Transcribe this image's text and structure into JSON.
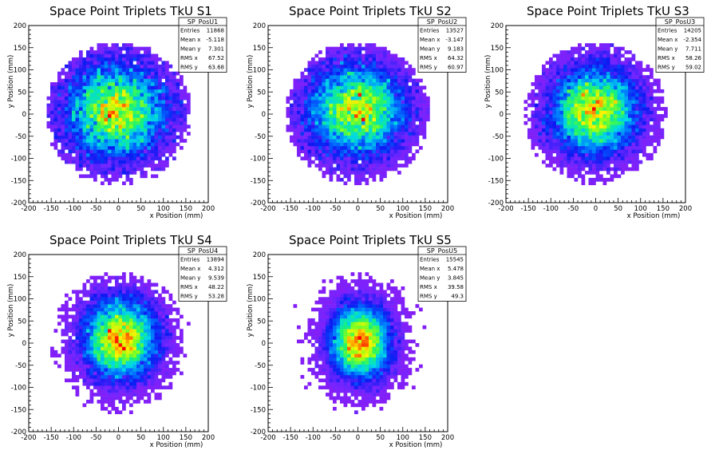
{
  "chart_data": [
    {
      "type": "heatmap",
      "title": "Space Point Triplets TkU S1",
      "xlabel": "x Position (mm)",
      "ylabel": "y Position (mm)",
      "xlim": [
        -200,
        200
      ],
      "ylim": [
        -200,
        200
      ],
      "xticks": [
        "-200",
        "-150",
        "-100",
        "-50",
        "0",
        "50",
        "100",
        "150",
        "200"
      ],
      "yticks": [
        "-200",
        "-150",
        "-100",
        "-50",
        "0",
        "50",
        "100",
        "150",
        "200"
      ],
      "stats": {
        "name": "SP_PosU1",
        "rows": [
          {
            "label": "Entries",
            "value": "11868"
          },
          {
            "label": "Mean x",
            "value": "-5.118"
          },
          {
            "label": "Mean y",
            "value": "7.301"
          },
          {
            "label": "RMS x",
            "value": "67.52"
          },
          {
            "label": "RMS y",
            "value": "63.68"
          }
        ]
      },
      "distribution": {
        "entries": 11868,
        "mean_x": -5.118,
        "mean_y": 7.301,
        "rms_x": 67.52,
        "rms_y": 63.68,
        "radius": 160
      }
    },
    {
      "type": "heatmap",
      "title": "Space Point Triplets TkU S2",
      "xlabel": "x Position (mm)",
      "ylabel": "y Position (mm)",
      "xlim": [
        -200,
        200
      ],
      "ylim": [
        -200,
        200
      ],
      "xticks": [
        "-200",
        "-150",
        "-100",
        "-50",
        "0",
        "50",
        "100",
        "150",
        "200"
      ],
      "yticks": [
        "-200",
        "-150",
        "-100",
        "-50",
        "0",
        "50",
        "100",
        "150",
        "200"
      ],
      "stats": {
        "name": "SP_PosU2",
        "rows": [
          {
            "label": "Entries",
            "value": "13527"
          },
          {
            "label": "Mean x",
            "value": "-3.147"
          },
          {
            "label": "Mean y",
            "value": "9.183"
          },
          {
            "label": "RMS x",
            "value": "64.32"
          },
          {
            "label": "RMS y",
            "value": "60.97"
          }
        ]
      },
      "distribution": {
        "entries": 13527,
        "mean_x": -3.147,
        "mean_y": 9.183,
        "rms_x": 64.32,
        "rms_y": 60.97,
        "radius": 160
      }
    },
    {
      "type": "heatmap",
      "title": "Space Point Triplets TkU S3",
      "xlabel": "x Position (mm)",
      "ylabel": "y Position (mm)",
      "xlim": [
        -200,
        200
      ],
      "ylim": [
        -200,
        200
      ],
      "xticks": [
        "-200",
        "-150",
        "-100",
        "-50",
        "0",
        "50",
        "100",
        "150",
        "200"
      ],
      "yticks": [
        "-200",
        "-150",
        "-100",
        "-50",
        "0",
        "50",
        "100",
        "150",
        "200"
      ],
      "stats": {
        "name": "SP_PosU3",
        "rows": [
          {
            "label": "Entries",
            "value": "14205"
          },
          {
            "label": "Mean x",
            "value": "-2.354"
          },
          {
            "label": "Mean y",
            "value": "7.711"
          },
          {
            "label": "RMS x",
            "value": "58.26"
          },
          {
            "label": "RMS y",
            "value": "59.02"
          }
        ]
      },
      "distribution": {
        "entries": 14205,
        "mean_x": -2.354,
        "mean_y": 7.711,
        "rms_x": 58.26,
        "rms_y": 59.02,
        "radius": 160
      }
    },
    {
      "type": "heatmap",
      "title": "Space Point Triplets TkU S4",
      "xlabel": "x Position (mm)",
      "ylabel": "y Position (mm)",
      "xlim": [
        -200,
        200
      ],
      "ylim": [
        -200,
        200
      ],
      "xticks": [
        "-200",
        "-150",
        "-100",
        "-50",
        "0",
        "50",
        "100",
        "150",
        "200"
      ],
      "yticks": [
        "-200",
        "-150",
        "-100",
        "-50",
        "0",
        "50",
        "100",
        "150",
        "200"
      ],
      "stats": {
        "name": "SP_PosU4",
        "rows": [
          {
            "label": "Entries",
            "value": "13894"
          },
          {
            "label": "Mean x",
            "value": "4.312"
          },
          {
            "label": "Mean y",
            "value": "9.539"
          },
          {
            "label": "RMS x",
            "value": "48.22"
          },
          {
            "label": "RMS y",
            "value": "53.28"
          }
        ]
      },
      "distribution": {
        "entries": 13894,
        "mean_x": 4.312,
        "mean_y": 9.539,
        "rms_x": 48.22,
        "rms_y": 53.28,
        "radius": 160
      }
    },
    {
      "type": "heatmap",
      "title": "Space Point Triplets TkU S5",
      "xlabel": "x Position (mm)",
      "ylabel": "y Position (mm)",
      "xlim": [
        -200,
        200
      ],
      "ylim": [
        -200,
        200
      ],
      "xticks": [
        "-200",
        "-150",
        "-100",
        "-50",
        "0",
        "50",
        "100",
        "150",
        "200"
      ],
      "yticks": [
        "-200",
        "-150",
        "-100",
        "-50",
        "0",
        "50",
        "100",
        "150",
        "200"
      ],
      "stats": {
        "name": "SP_PosU5",
        "rows": [
          {
            "label": "Entries",
            "value": "15545"
          },
          {
            "label": "Mean x",
            "value": "5.478"
          },
          {
            "label": "Mean y",
            "value": "3.845"
          },
          {
            "label": "RMS x",
            "value": "39.58"
          },
          {
            "label": "RMS y",
            "value": "49.3"
          }
        ]
      },
      "distribution": {
        "entries": 15545,
        "mean_x": 5.478,
        "mean_y": 3.845,
        "rms_x": 39.58,
        "rms_y": 49.3,
        "radius": 160
      }
    }
  ]
}
